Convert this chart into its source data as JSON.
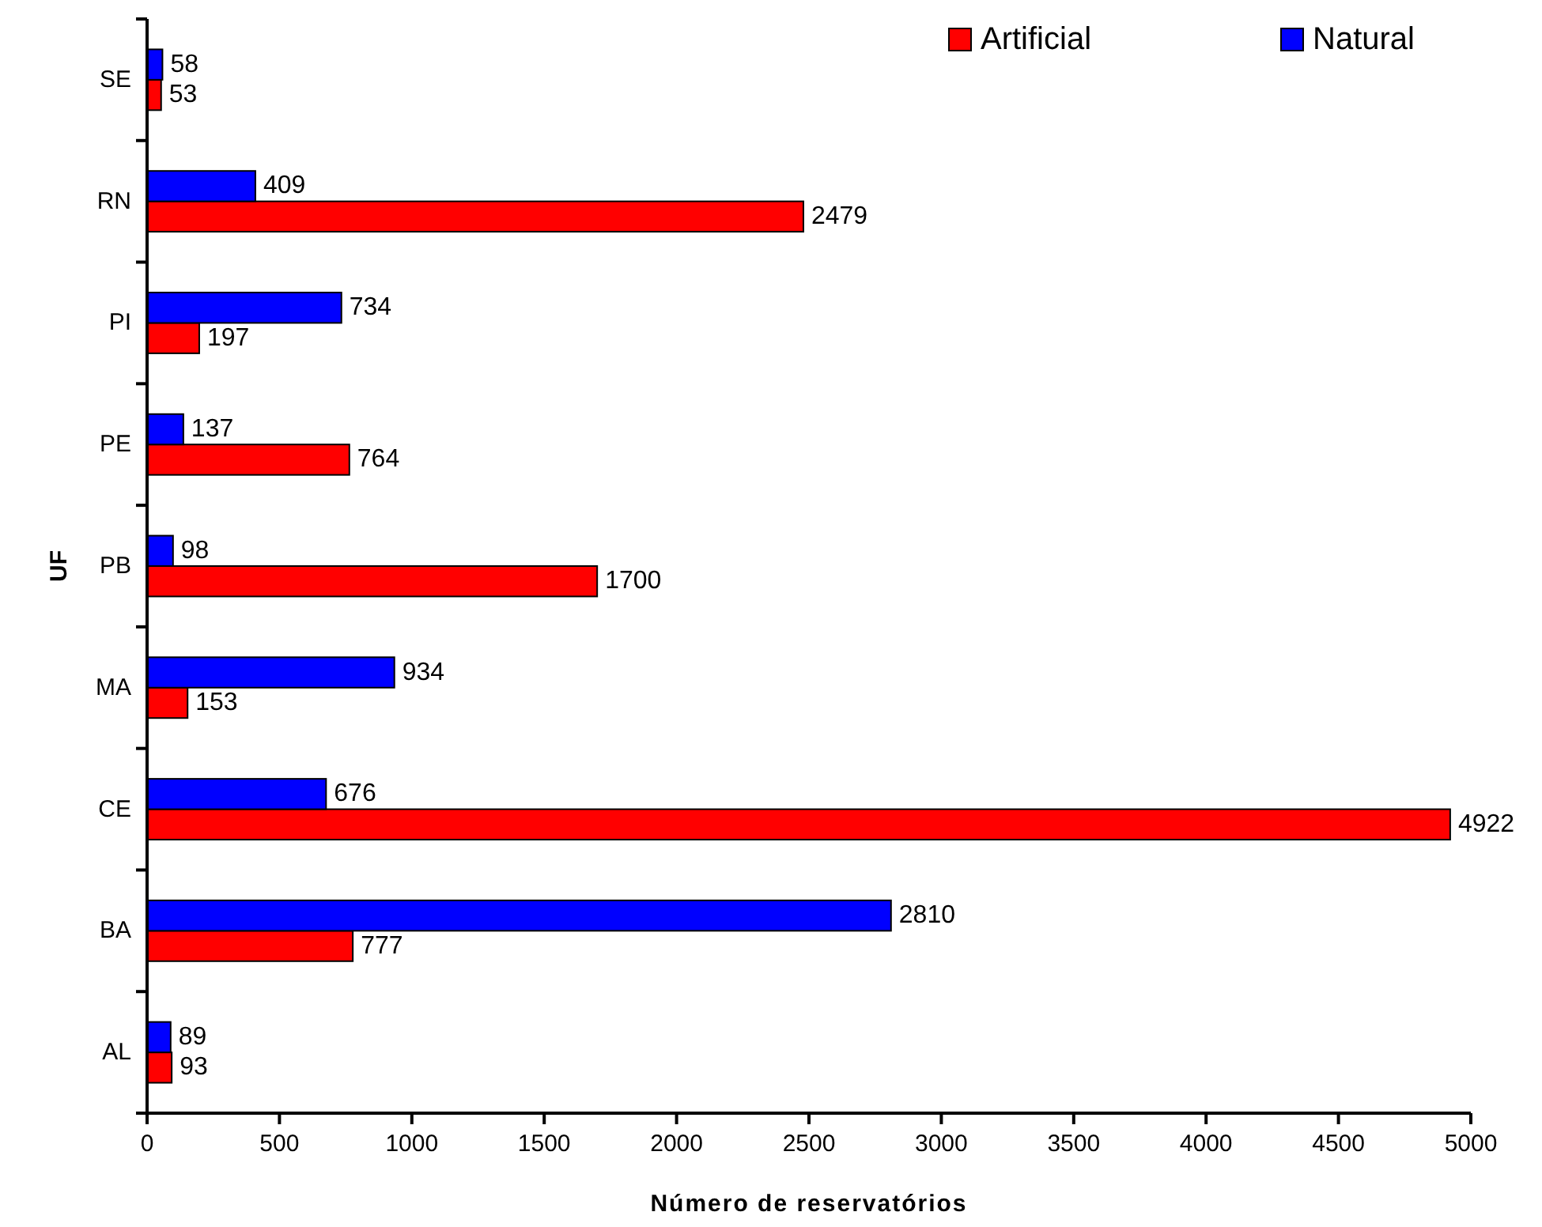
{
  "chart_data": {
    "type": "bar",
    "orientation": "horizontal",
    "xlabel": "Número de reservatórios",
    "ylabel": "UF",
    "categories": [
      "SE",
      "RN",
      "PI",
      "PE",
      "PB",
      "MA",
      "CE",
      "BA",
      "AL"
    ],
    "series": [
      {
        "name": "Artificial",
        "color": "#ff0000",
        "values": [
          53,
          2479,
          197,
          764,
          1700,
          153,
          4922,
          777,
          93
        ]
      },
      {
        "name": "Natural",
        "color": "#0000ff",
        "values": [
          58,
          409,
          734,
          137,
          98,
          934,
          676,
          2810,
          89
        ]
      }
    ],
    "xlim": [
      0,
      5000
    ],
    "xticks": [
      0,
      500,
      1000,
      1500,
      2000,
      2500,
      3000,
      3500,
      4000,
      4500,
      5000
    ],
    "data_labels": true,
    "grid": false,
    "legend": "top right"
  }
}
